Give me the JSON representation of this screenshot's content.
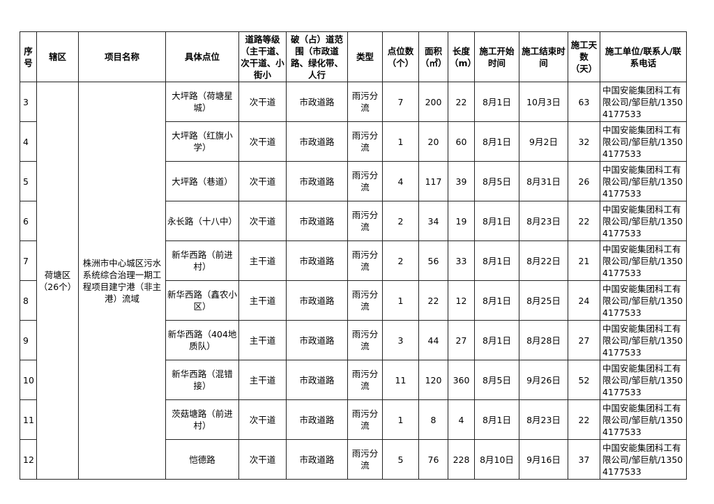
{
  "headers": [
    "序号",
    "辖区",
    "项目名称",
    "具体点位",
    "道路等级（主干道、次干道、小街小",
    "破（占）道范围（市政道路、绿化带、人行",
    "类型",
    "点位数（个）",
    "面积（㎡）",
    "长度（m）",
    "施工开始时间",
    "施工结束时间",
    "施工天数（天）",
    "施工单位/联系人/联系电话"
  ],
  "district": "荷塘区（26个）",
  "project": "株洲市中心城区污水系统综合治理一期工程项目建宁港（非主港）流域",
  "rows": [
    {
      "no": "3",
      "location": "大坪路（荷塘星城）",
      "grade": "次干道",
      "scope": "市政道路",
      "type": "雨污分流",
      "points": "7",
      "area": "200",
      "length": "22",
      "start": "8月1日",
      "end": "10月3日",
      "days": "63",
      "unit": "中国安能集团科工有限公司/邹巨航/13504177533"
    },
    {
      "no": "4",
      "location": "大坪路（红旗小学）",
      "grade": "次干道",
      "scope": "市政道路",
      "type": "雨污分流",
      "points": "1",
      "area": "20",
      "length": "60",
      "start": "8月1日",
      "end": "9月2日",
      "days": "32",
      "unit": "中国安能集团科工有限公司/邹巨航/13504177533"
    },
    {
      "no": "5",
      "location": "大坪路（巷道）",
      "grade": "次干道",
      "scope": "市政道路",
      "type": "雨污分流",
      "points": "4",
      "area": "117",
      "length": "39",
      "start": "8月5日",
      "end": "8月31日",
      "days": "26",
      "unit": "中国安能集团科工有限公司/邹巨航/13504177533"
    },
    {
      "no": "6",
      "location": "永长路（十八中）",
      "grade": "次干道",
      "scope": "市政道路",
      "type": "雨污分流",
      "points": "2",
      "area": "34",
      "length": "19",
      "start": "8月1日",
      "end": "8月23日",
      "days": "22",
      "unit": "中国安能集团科工有限公司/邹巨航/13504177533"
    },
    {
      "no": "7",
      "location": "新华西路（前进村）",
      "grade": "主干道",
      "scope": "市政道路",
      "type": "雨污分流",
      "points": "2",
      "area": "56",
      "length": "33",
      "start": "8月1日",
      "end": "8月22日",
      "days": "21",
      "unit": "中国安能集团科工有限公司/邹巨航/13504177533"
    },
    {
      "no": "8",
      "location": "新华西路（鑫农小区）",
      "grade": "主干道",
      "scope": "市政道路",
      "type": "雨污分流",
      "points": "1",
      "area": "22",
      "length": "12",
      "start": "8月1日",
      "end": "8月25日",
      "days": "24",
      "unit": "中国安能集团科工有限公司/邹巨航/13504177533"
    },
    {
      "no": "9",
      "location": "新华西路（404地质队）",
      "grade": "主干道",
      "scope": "市政道路",
      "type": "雨污分流",
      "points": "3",
      "area": "44",
      "length": "27",
      "start": "8月1日",
      "end": "8月28日",
      "days": "27",
      "unit": "中国安能集团科工有限公司/邹巨航/13504177533"
    },
    {
      "no": "10",
      "location": "新华西路（混错接）",
      "grade": "主干道",
      "scope": "市政道路",
      "type": "雨污分流",
      "points": "11",
      "area": "120",
      "length": "360",
      "start": "8月5日",
      "end": "9月26日",
      "days": "52",
      "unit": "中国安能集团科工有限公司/邹巨航/13504177533"
    },
    {
      "no": "11",
      "location": "茨菇塘路（前进村）",
      "grade": "次干道",
      "scope": "市政道路",
      "type": "雨污分流",
      "points": "1",
      "area": "8",
      "length": "4",
      "start": "8月1日",
      "end": "8月23日",
      "days": "22",
      "unit": "中国安能集团科工有限公司/邹巨航/13504177533"
    },
    {
      "no": "12",
      "location": "恺德路",
      "grade": "次干道",
      "scope": "市政道路",
      "type": "雨污分流",
      "points": "5",
      "area": "76",
      "length": "228",
      "start": "8月10日",
      "end": "9月16日",
      "days": "37",
      "unit": "中国安能集团科工有限公司/邹巨航/13504177533"
    }
  ]
}
